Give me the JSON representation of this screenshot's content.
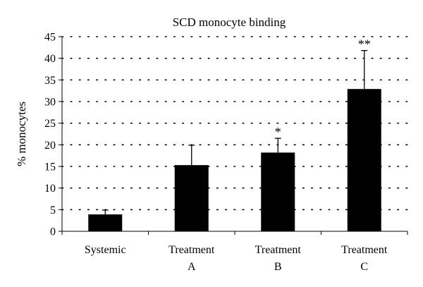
{
  "chart_data": {
    "type": "bar",
    "title": "SCD monocyte binding",
    "xlabel": "",
    "ylabel": "% monocytes",
    "ylim": [
      0,
      45
    ],
    "yticks": [
      0,
      5,
      10,
      15,
      20,
      25,
      30,
      35,
      40,
      45
    ],
    "grid": "horizontal dotted",
    "legend": "none",
    "categories": [
      [
        "Systemic"
      ],
      [
        "Treatment",
        "A"
      ],
      [
        "Treatment",
        "B"
      ],
      [
        "Treatment",
        "C"
      ]
    ],
    "values": [
      3.9,
      15.3,
      18.2,
      32.9
    ],
    "error_bars": [
      1.0,
      4.6,
      3.3,
      8.9
    ],
    "significance": [
      "",
      "",
      "*",
      "**"
    ],
    "bar_color": "#000000"
  }
}
